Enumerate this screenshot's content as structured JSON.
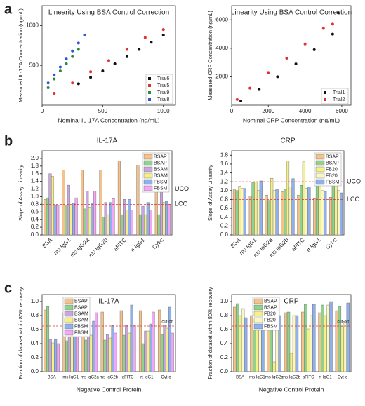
{
  "panel_labels": [
    "a",
    "b",
    "c"
  ],
  "chart_data": [
    {
      "type": "scatter",
      "title": "Linearity Using BSA Control Correction",
      "x_label": "Nominal IL-17A Concentration (ng/mL)",
      "y_label": "Measured IL-17A Concentration (ng/mL)",
      "xlim": [
        0,
        1100
      ],
      "xticks": [
        0,
        500,
        1000
      ],
      "ylim": [
        0,
        1250
      ],
      "yticks": [
        500,
        1000
      ],
      "legend": "lower right",
      "series": [
        {
          "name": "Trial6",
          "color": "#111111",
          "x": [
            300,
            400,
            500,
            600,
            700,
            800,
            900,
            1000
          ],
          "values": [
            270,
            350,
            430,
            520,
            610,
            700,
            790,
            880
          ]
        },
        {
          "name": "Trial5",
          "color": "#e03030",
          "x": [
            100,
            250,
            400,
            550,
            700,
            850,
            1000
          ],
          "values": [
            150,
            280,
            420,
            560,
            700,
            850,
            950
          ]
        },
        {
          "name": "Trial9",
          "color": "#2e8b3a",
          "x": [
            50,
            100,
            150,
            200,
            250,
            300
          ],
          "values": [
            220,
            330,
            430,
            520,
            610,
            700
          ]
        },
        {
          "name": "Trial8",
          "color": "#2f55d4",
          "x": [
            50,
            100,
            150,
            200,
            250,
            300,
            350
          ],
          "values": [
            280,
            380,
            480,
            580,
            680,
            780,
            880
          ]
        }
      ]
    },
    {
      "type": "scatter",
      "title": "Linearity Using BSA Control Correction",
      "x_label": "Nominal CRP Concentration (ng/mL)",
      "y_label": "Measured CRP Concentration (ng/mL)",
      "xlim": [
        0,
        6500
      ],
      "xticks": [
        0,
        2000,
        4000,
        6000
      ],
      "ylim": [
        0,
        7000
      ],
      "yticks": [
        2000,
        4000,
        6000
      ],
      "legend": "lower right",
      "series": [
        {
          "name": "Trial1",
          "color": "#111111",
          "x": [
            500,
            1500,
            2500,
            3500,
            4500,
            5500,
            5800
          ],
          "values": [
            300,
            1100,
            2000,
            2900,
            3900,
            5000,
            6500
          ]
        },
        {
          "name": "Trial2",
          "color": "#e03030",
          "x": [
            300,
            1000,
            2000,
            3000,
            4000,
            5000,
            5500
          ],
          "values": [
            400,
            1200,
            2300,
            3300,
            4300,
            5400,
            5700
          ]
        }
      ]
    },
    {
      "type": "bar",
      "title": "IL-17A",
      "y_label": "Slope of Assay Linearity",
      "ylim": [
        0,
        2.2
      ],
      "yticks": [
        {
          "value": 0,
          "label": "0.0"
        },
        {
          "value": 0.2,
          "label": "0.2"
        },
        {
          "value": 0.4,
          "label": "0.4"
        },
        {
          "value": 0.6,
          "label": "0.6"
        },
        {
          "value": 0.8,
          "label": "0.8"
        },
        {
          "value": 1,
          "label": "1.0"
        },
        {
          "value": 1.2,
          "label": "1.2"
        },
        {
          "value": 1.4,
          "label": "1.4"
        },
        {
          "value": 1.6,
          "label": "1.6"
        },
        {
          "value": 1.8,
          "label": "1.8"
        },
        {
          "value": 2,
          "label": "2.0"
        }
      ],
      "reference_lines": [
        {
          "value": 1.2,
          "label": "UCO"
        },
        {
          "value": 0.8,
          "label": "LCO"
        }
      ],
      "legend": "upper right",
      "categories": [
        "BSA",
        "ms IgG1",
        "ms IgG2a",
        "ms IgG2b",
        "aFITC",
        "rt IgG1",
        "Cyt-c"
      ],
      "series": [
        {
          "name": "BSAP",
          "color": "#f5c28a",
          "values": [
            0.93,
            1.7,
            1.7,
            1.7,
            1.93,
            1.82,
            1.52
          ]
        },
        {
          "name": "BSAP",
          "color": "#8fd18f",
          "values": [
            0.97,
            0.78,
            0.68,
            0.47,
            0.53,
            0.53,
            0.53
          ]
        },
        {
          "name": "BSAM",
          "color": "#c9a6e0",
          "values": [
            1.6,
            1.3,
            1.15,
            0.85,
            0.93,
            0.75,
            1.6
          ]
        },
        {
          "name": "BSAM",
          "color": "#f5f08a",
          "values": [
            1.53,
            0.78,
            0.73,
            0.53,
            0.65,
            0.53,
            0.85
          ]
        },
        {
          "name": "FBSM",
          "color": "#8fb0ee",
          "values": [
            0.77,
            0.83,
            0.83,
            0.85,
            0.93,
            0.85,
            0.88
          ]
        },
        {
          "name": "FBSM",
          "color": "#f5a6f5",
          "values": [
            0.77,
            0.97,
            1.15,
            0.95,
            0.65,
            0.65,
            0.8
          ]
        }
      ]
    },
    {
      "type": "bar",
      "title": "CRP",
      "y_label": "Slope of Assay Linearity",
      "ylim": [
        0,
        1.9
      ],
      "yticks": [
        {
          "value": 0,
          "label": "0.0"
        },
        {
          "value": 0.2,
          "label": "0.2"
        },
        {
          "value": 0.4,
          "label": "0.4"
        },
        {
          "value": 0.6,
          "label": "0.6"
        },
        {
          "value": 0.8,
          "label": "0.8"
        },
        {
          "value": 1,
          "label": "1.0"
        },
        {
          "value": 1.2,
          "label": "1.2"
        },
        {
          "value": 1.4,
          "label": "1.4"
        },
        {
          "value": 1.6,
          "label": "1.6"
        },
        {
          "value": 1.8,
          "label": "1.8"
        }
      ],
      "reference_lines": [
        {
          "value": 1.2,
          "label": "UCO"
        },
        {
          "value": 0.8,
          "label": "LCO"
        }
      ],
      "legend": "upper right",
      "categories": [
        "BSA",
        "ms IgG1",
        "ms IgG2a",
        "ms IgG2b",
        "aFITC",
        "rt IgG1",
        "Cyt-c"
      ],
      "series": [
        {
          "name": "BSAP",
          "color": "#f5c28a",
          "values": [
            1.02,
            0.88,
            0.9,
            0.98,
            0.9,
            0.82,
            0.85
          ]
        },
        {
          "name": "BSAP",
          "color": "#8fd18f",
          "values": [
            1.0,
            1.18,
            0.78,
            1.03,
            1.12,
            1.2,
            1.3
          ]
        },
        {
          "name": "FB20",
          "color": "#f5f08a",
          "values": [
            1.1,
            1.2,
            1.28,
            1.67,
            1.65,
            1.25,
            1.48
          ]
        },
        {
          "name": "FB20",
          "color": "#faf7c4",
          "values": [
            1.05,
            1.0,
            1.0,
            1.08,
            1.05,
            1.0,
            1.0
          ]
        },
        {
          "name": "FBSM",
          "color": "#8fb0ee",
          "values": [
            1.05,
            1.22,
            1.03,
            1.27,
            1.08,
            0.98,
            0.95
          ]
        }
      ]
    },
    {
      "type": "bar",
      "title": "IL-17A",
      "y_label": "Fraction of dataset within 80% recovery",
      "x_label": "Negative Control Protein",
      "ylim": [
        0,
        1.1
      ],
      "yticks": [
        {
          "value": 0,
          "label": "0.0"
        },
        {
          "value": 0.2,
          "label": "0.2"
        },
        {
          "value": 0.4,
          "label": "0.4"
        },
        {
          "value": 0.6,
          "label": "0.6"
        },
        {
          "value": 0.8,
          "label": "0.8"
        },
        {
          "value": 1,
          "label": "1.0"
        }
      ],
      "reference_lines": [
        {
          "value": 0.65,
          "label": "cut-off"
        }
      ],
      "legend": "upper left",
      "categories": [
        "BSA",
        "ms IgG1",
        "ms IgG2a",
        "ms IgG2b",
        "aFITC",
        "rt IgG1",
        "Cyt-c"
      ],
      "series": [
        {
          "name": "BSAP",
          "color": "#f5c28a",
          "values": [
            0.88,
            0.84,
            0.85,
            0.85,
            0.87,
            0.87,
            0.88
          ]
        },
        {
          "name": "BSAP",
          "color": "#8fd18f",
          "values": [
            0.93,
            0.44,
            0.45,
            0.45,
            0.52,
            0.4,
            0.53
          ]
        },
        {
          "name": "BSAM",
          "color": "#c9a6e0",
          "values": [
            0.46,
            0.68,
            0.6,
            0.53,
            0.66,
            0.58,
            0.66
          ]
        },
        {
          "name": "BSAM",
          "color": "#f5f08a",
          "values": [
            0.41,
            0.55,
            0.52,
            0.48,
            0.55,
            0.58,
            0.62
          ]
        },
        {
          "name": "FBSM",
          "color": "#8fb0ee",
          "values": [
            0.46,
            0.78,
            0.72,
            0.66,
            0.95,
            0.68,
            0.92
          ]
        },
        {
          "name": "FBSM",
          "color": "#f5a6f5",
          "values": [
            0.4,
            0.67,
            0.84,
            0.55,
            0.66,
            0.85,
            0.55
          ]
        }
      ]
    },
    {
      "type": "bar",
      "title": "CRP",
      "y_label": "Fraction of dataset within 80% recovery",
      "x_label": "Negative Control Protein",
      "ylim": [
        0,
        1.1
      ],
      "yticks": [
        {
          "value": 0,
          "label": "0.0"
        },
        {
          "value": 0.2,
          "label": "0.2"
        },
        {
          "value": 0.4,
          "label": "0.4"
        },
        {
          "value": 0.6,
          "label": "0.6"
        },
        {
          "value": 0.8,
          "label": "0.8"
        },
        {
          "value": 1,
          "label": "1.0"
        }
      ],
      "reference_lines": [
        {
          "value": 0.65,
          "label": "cut-off"
        }
      ],
      "legend": "upper left",
      "categories": [
        "BSA",
        "ms IgG1",
        "ms IgG2a",
        "ms IgG2b",
        "aFITC",
        "rt IgG1",
        "Cyt-c"
      ],
      "series": [
        {
          "name": "BSAP",
          "color": "#f5c28a",
          "values": [
            0.92,
            0.8,
            0.85,
            0.84,
            0.85,
            0.84,
            0.87
          ]
        },
        {
          "name": "BSAP",
          "color": "#8fd18f",
          "values": [
            0.97,
            0.85,
            0.6,
            0.85,
            0.96,
            0.95,
            0.93
          ]
        },
        {
          "name": "FB20",
          "color": "#f5f08a",
          "values": [
            0.8,
            0.68,
            0.14,
            0.26,
            0.61,
            0.8,
            0.64
          ]
        },
        {
          "name": "FB20",
          "color": "#faf7c4",
          "values": [
            0.9,
            0.8,
            0.8,
            0.8,
            0.8,
            0.95,
            0.71
          ]
        },
        {
          "name": "FBSM",
          "color": "#8fb0ee",
          "values": [
            0.77,
            0.85,
            0.8,
            0.8,
            0.96,
            1.0,
            0.98
          ]
        }
      ]
    }
  ]
}
